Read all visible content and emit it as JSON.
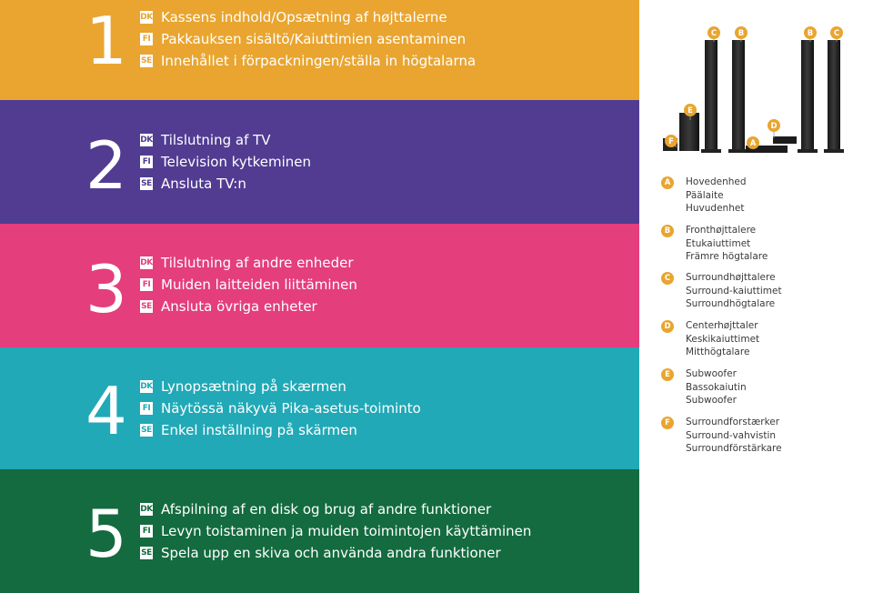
{
  "sections": [
    {
      "number": "1",
      "lines": [
        {
          "tag": "DK",
          "text": "Kassens indhold/Opsætning af højttalerne"
        },
        {
          "tag": "FI",
          "text": "Pakkauksen sisältö/Kaiuttimien asentaminen"
        },
        {
          "tag": "SE",
          "text": "Innehållet i förpackningen/ställa in högtalarna"
        }
      ]
    },
    {
      "number": "2",
      "lines": [
        {
          "tag": "DK",
          "text": "Tilslutning af TV"
        },
        {
          "tag": "FI",
          "text": "Television kytkeminen"
        },
        {
          "tag": "SE",
          "text": "Ansluta TV:n"
        }
      ]
    },
    {
      "number": "3",
      "lines": [
        {
          "tag": "DK",
          "text": "Tilslutning af andre enheder"
        },
        {
          "tag": "FI",
          "text": "Muiden laitteiden liittäminen"
        },
        {
          "tag": "SE",
          "text": "Ansluta övriga enheter"
        }
      ]
    },
    {
      "number": "4",
      "lines": [
        {
          "tag": "DK",
          "text": "Lynopsætning på skærmen"
        },
        {
          "tag": "FI",
          "text": "Näytössä näkyvä Pika-asetus-toiminto"
        },
        {
          "tag": "SE",
          "text": "Enkel inställning på skärmen"
        }
      ]
    },
    {
      "number": "5",
      "lines": [
        {
          "tag": "DK",
          "text": "Afspilning af en disk og brug af andre funktioner"
        },
        {
          "tag": "FI",
          "text": "Levyn toistaminen ja muiden toimintojen käyttäminen"
        },
        {
          "tag": "SE",
          "text": "Spela upp en skiva och använda andra funktioner"
        }
      ]
    }
  ],
  "image_labels": {
    "c_left": "C",
    "b_left": "B",
    "b_right": "B",
    "c_right": "C",
    "e": "E",
    "f": "F",
    "a": "A",
    "d": "D"
  },
  "legend": [
    {
      "letter": "A",
      "dk": "Hovedenhed",
      "fi": "Päälaite",
      "se": "Huvudenhet"
    },
    {
      "letter": "B",
      "dk": "Fronthøjttalere",
      "fi": "Etukaiuttimet",
      "se": "Främre högtalare"
    },
    {
      "letter": "C",
      "dk": "Surroundhøjttalere",
      "fi": "Surround-kaiuttimet",
      "se": "Surroundhögtalare"
    },
    {
      "letter": "D",
      "dk": "Centerhøjttaler",
      "fi": "Keskikaiuttimet",
      "se": "Mitthögtalare"
    },
    {
      "letter": "E",
      "dk": "Subwoofer",
      "fi": "Bassokaiutin",
      "se": "Subwoofer"
    },
    {
      "letter": "F",
      "dk": "Surroundforstærker",
      "fi": "Surround-vahvistin",
      "se": "Surroundförstärkare"
    }
  ],
  "colors": {
    "section_1": "#e9a530",
    "section_2": "#513c92",
    "section_3": "#e43e7d",
    "section_4": "#21a9b7",
    "section_5": "#136b3f",
    "label_accent": "#e9a530"
  }
}
